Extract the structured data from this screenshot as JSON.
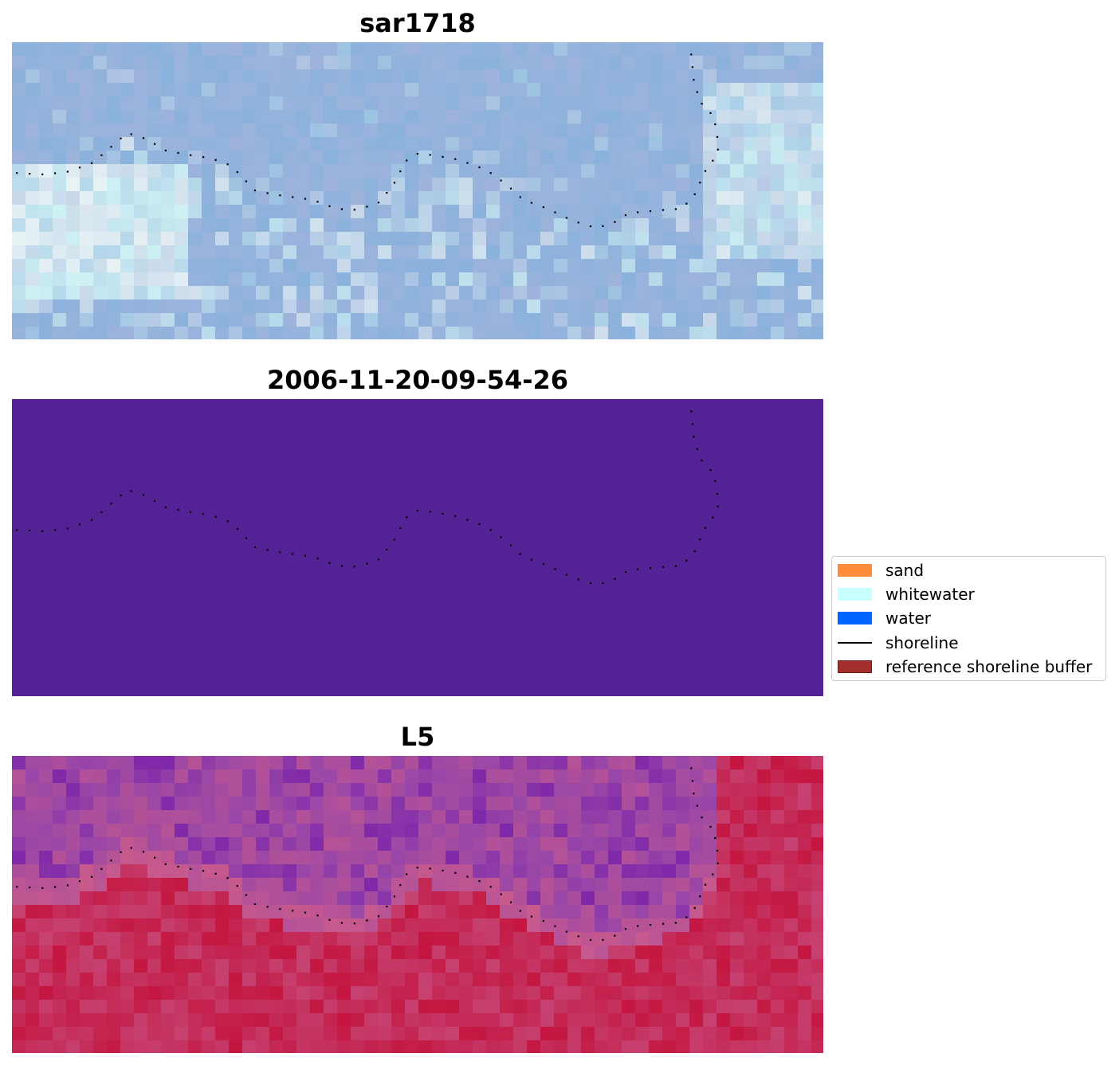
{
  "chart_data": [
    {
      "type": "heatmap",
      "title": "sar1718",
      "description_colors": {
        "base": "#8fb4d9",
        "light": "#e8f4f6"
      },
      "shoreline_style": "dotted",
      "shoreline": [
        [
          0.006,
          0.44
        ],
        [
          0.04,
          0.445
        ],
        [
          0.07,
          0.435
        ],
        [
          0.1,
          0.405
        ],
        [
          0.125,
          0.345
        ],
        [
          0.142,
          0.305
        ],
        [
          0.165,
          0.325
        ],
        [
          0.19,
          0.365
        ],
        [
          0.22,
          0.38
        ],
        [
          0.245,
          0.39
        ],
        [
          0.27,
          0.415
        ],
        [
          0.3,
          0.5
        ],
        [
          0.33,
          0.515
        ],
        [
          0.37,
          0.53
        ],
        [
          0.4,
          0.56
        ],
        [
          0.42,
          0.565
        ],
        [
          0.45,
          0.545
        ],
        [
          0.47,
          0.48
        ],
        [
          0.485,
          0.4
        ],
        [
          0.5,
          0.375
        ],
        [
          0.52,
          0.38
        ],
        [
          0.55,
          0.395
        ],
        [
          0.585,
          0.43
        ],
        [
          0.61,
          0.48
        ],
        [
          0.63,
          0.53
        ],
        [
          0.66,
          0.56
        ],
        [
          0.69,
          0.6
        ],
        [
          0.72,
          0.625
        ],
        [
          0.74,
          0.61
        ],
        [
          0.76,
          0.575
        ],
        [
          0.8,
          0.565
        ],
        [
          0.825,
          0.56
        ],
        [
          0.84,
          0.52
        ],
        [
          0.855,
          0.43
        ],
        [
          0.87,
          0.375
        ],
        [
          0.87,
          0.33
        ],
        [
          0.865,
          0.25
        ],
        [
          0.848,
          0.2
        ],
        [
          0.84,
          0.125
        ],
        [
          0.838,
          0.06
        ],
        [
          0.836,
          0.015
        ]
      ]
    },
    {
      "type": "heatmap",
      "title": "2006-11-20-09-54-26",
      "description_colors": {
        "base": "#532396"
      },
      "shoreline_style": "dotted"
    },
    {
      "type": "heatmap",
      "title": "L5",
      "description_colors": {
        "water": "#9b4aa8",
        "land": "#c4245a"
      },
      "shoreline_style": "dotted"
    }
  ],
  "legend": {
    "placement": "center-right",
    "items": [
      {
        "label": "sand",
        "kind": "patch",
        "color": "#ff8c3a"
      },
      {
        "label": "whitewater",
        "kind": "patch",
        "color": "#c6fffd"
      },
      {
        "label": "water",
        "kind": "patch",
        "color": "#0064ff"
      },
      {
        "label": "shoreline",
        "kind": "line",
        "color": "#000000"
      },
      {
        "label": "reference shoreline buffer",
        "kind": "patch",
        "color": "#a4302e",
        "edge": "#6e1a19"
      }
    ]
  }
}
